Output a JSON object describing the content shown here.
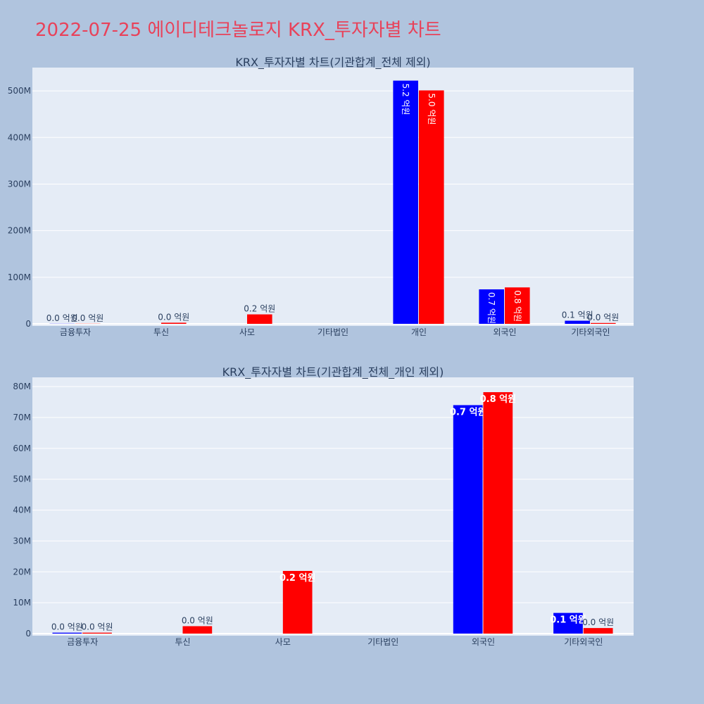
{
  "title": "2022-07-25 에이디테크놀로지 KRX_투자자별 차트",
  "colors": {
    "buy": "#0000ff",
    "sell": "#ff0000",
    "plot_bg": "#e5ecf6",
    "page_bg": "#b0c4de",
    "title": "#e8425a"
  },
  "chart_data": [
    {
      "type": "bar",
      "title": "KRX_투자자별 차트(기관합계_전체 제외)",
      "categories": [
        "금융투자",
        "투신",
        "사모",
        "기타법인",
        "개인",
        "외국인",
        "기타외국인"
      ],
      "series": [
        {
          "values": [
            300000,
            0,
            0,
            0,
            522000000,
            74000000,
            6700000
          ],
          "labels": [
            "0.0 억원",
            "",
            "",
            "",
            "5.2 억원",
            "0.7 억원",
            "0.1 억원"
          ]
        },
        {
          "values": [
            300000,
            2400000,
            20300000,
            0,
            501000000,
            78200000,
            1800000
          ],
          "labels": [
            "0.0 억원",
            "0.0 억원",
            "0.2 억원",
            "",
            "5.0 억원",
            "0.8 억원",
            "0.0 억원"
          ]
        }
      ],
      "ylim": [
        0,
        550000000
      ],
      "yticks": [
        0,
        100000000,
        200000000,
        300000000,
        400000000,
        500000000
      ],
      "ytick_labels": [
        "0",
        "100M",
        "200M",
        "300M",
        "400M",
        "500M"
      ]
    },
    {
      "type": "bar",
      "title": "KRX_투자자별 차트(기관합계_전체_개인 제외)",
      "categories": [
        "금융투자",
        "투신",
        "사모",
        "기타법인",
        "외국인",
        "기타외국인"
      ],
      "series": [
        {
          "values": [
            300000,
            0,
            0,
            0,
            74000000,
            6700000
          ],
          "labels": [
            "0.0 억원",
            "",
            "",
            "",
            "0.7 억원",
            "0.1 억원"
          ]
        },
        {
          "values": [
            300000,
            2400000,
            20300000,
            0,
            78200000,
            1800000
          ],
          "labels": [
            "0.0 억원",
            "0.0 억원",
            "0.2 억원",
            "",
            "0.8 억원",
            "0.0 억원"
          ]
        }
      ],
      "ylim": [
        0,
        83000000
      ],
      "yticks": [
        0,
        10000000,
        20000000,
        30000000,
        40000000,
        50000000,
        60000000,
        70000000,
        80000000
      ],
      "ytick_labels": [
        "0",
        "10M",
        "20M",
        "30M",
        "40M",
        "50M",
        "60M",
        "70M",
        "80M"
      ]
    }
  ]
}
